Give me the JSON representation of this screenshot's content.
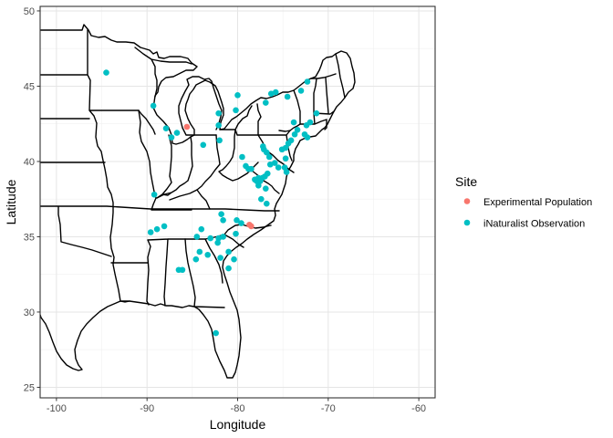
{
  "chart_data": {
    "type": "scatter",
    "background_map": "Eastern United States state boundaries",
    "xlabel": "Longitude",
    "ylabel": "Latitude",
    "xlim": [
      -101.8,
      -58.2
    ],
    "ylim": [
      24.3,
      50.3
    ],
    "x_ticks": [
      -100,
      -90,
      -80,
      -70,
      -60
    ],
    "y_ticks": [
      25,
      30,
      35,
      40,
      45,
      50
    ],
    "x_tick_labels": [
      "-100",
      "-90",
      "-80",
      "-70",
      "-60"
    ],
    "y_tick_labels": [
      "25",
      "30",
      "35",
      "40",
      "45",
      "50"
    ],
    "grid": true,
    "legend": {
      "title": "Site",
      "position": "right"
    },
    "series": [
      {
        "name": "Experimental Population",
        "color": "#F8766D",
        "points": [
          [
            -85.6,
            42.3
          ],
          [
            -78.7,
            35.8
          ],
          [
            -78.5,
            35.7
          ]
        ]
      },
      {
        "name": "iNaturalist Observation",
        "color": "#00BFC4",
        "points": [
          [
            -94.5,
            45.9
          ],
          [
            -89.3,
            43.7
          ],
          [
            -87.9,
            42.2
          ],
          [
            -87.3,
            41.6
          ],
          [
            -86.7,
            41.9
          ],
          [
            -83.8,
            41.1
          ],
          [
            -82.1,
            43.2
          ],
          [
            -82.1,
            42.4
          ],
          [
            -80.2,
            43.4
          ],
          [
            -80.0,
            44.4
          ],
          [
            -82.0,
            41.4
          ],
          [
            -79.5,
            40.3
          ],
          [
            -78.5,
            39.5
          ],
          [
            -78.8,
            39.5
          ],
          [
            -79.1,
            39.7
          ],
          [
            -76.3,
            44.5
          ],
          [
            -75.8,
            44.6
          ],
          [
            -76.9,
            43.9
          ],
          [
            -74.5,
            44.3
          ],
          [
            -73.0,
            44.7
          ],
          [
            -72.3,
            45.3
          ],
          [
            -71.3,
            43.2
          ],
          [
            -72.0,
            42.6
          ],
          [
            -72.4,
            42.4
          ],
          [
            -72.6,
            41.8
          ],
          [
            -72.3,
            41.6
          ],
          [
            -73.8,
            42.6
          ],
          [
            -73.4,
            42.1
          ],
          [
            -73.7,
            41.8
          ],
          [
            -74.1,
            41.4
          ],
          [
            -74.4,
            41.2
          ],
          [
            -74.7,
            40.9
          ],
          [
            -75.1,
            40.8
          ],
          [
            -74.7,
            40.2
          ],
          [
            -74.8,
            39.6
          ],
          [
            -74.6,
            39.3
          ],
          [
            -75.5,
            39.6
          ],
          [
            -75.9,
            39.9
          ],
          [
            -76.5,
            40.3
          ],
          [
            -76.8,
            40.6
          ],
          [
            -77.2,
            41.0
          ],
          [
            -77.1,
            40.8
          ],
          [
            -76.4,
            39.8
          ],
          [
            -76.7,
            39.2
          ],
          [
            -77.0,
            39.0
          ],
          [
            -77.3,
            38.9
          ],
          [
            -77.5,
            38.7
          ],
          [
            -77.7,
            38.9
          ],
          [
            -77.9,
            38.7
          ],
          [
            -78.1,
            38.8
          ],
          [
            -77.7,
            38.4
          ],
          [
            -76.9,
            38.2
          ],
          [
            -77.4,
            37.5
          ],
          [
            -76.8,
            37.2
          ],
          [
            -89.2,
            37.8
          ],
          [
            -88.1,
            35.7
          ],
          [
            -89.6,
            35.3
          ],
          [
            -88.9,
            35.5
          ],
          [
            -84.0,
            35.5
          ],
          [
            -81.8,
            36.5
          ],
          [
            -81.6,
            36.1
          ],
          [
            -80.1,
            36.1
          ],
          [
            -79.6,
            35.9
          ],
          [
            -80.2,
            35.2
          ],
          [
            -81.6,
            35.0
          ],
          [
            -82.1,
            34.9
          ],
          [
            -83.0,
            34.9
          ],
          [
            -84.5,
            35.0
          ],
          [
            -84.2,
            34.0
          ],
          [
            -83.3,
            33.8
          ],
          [
            -82.2,
            34.6
          ],
          [
            -81.0,
            34.0
          ],
          [
            -81.9,
            33.6
          ],
          [
            -84.6,
            33.5
          ],
          [
            -80.4,
            33.5
          ],
          [
            -81.0,
            32.9
          ],
          [
            -86.5,
            32.8
          ],
          [
            -86.1,
            32.8
          ],
          [
            -82.4,
            28.6
          ]
        ]
      }
    ]
  }
}
